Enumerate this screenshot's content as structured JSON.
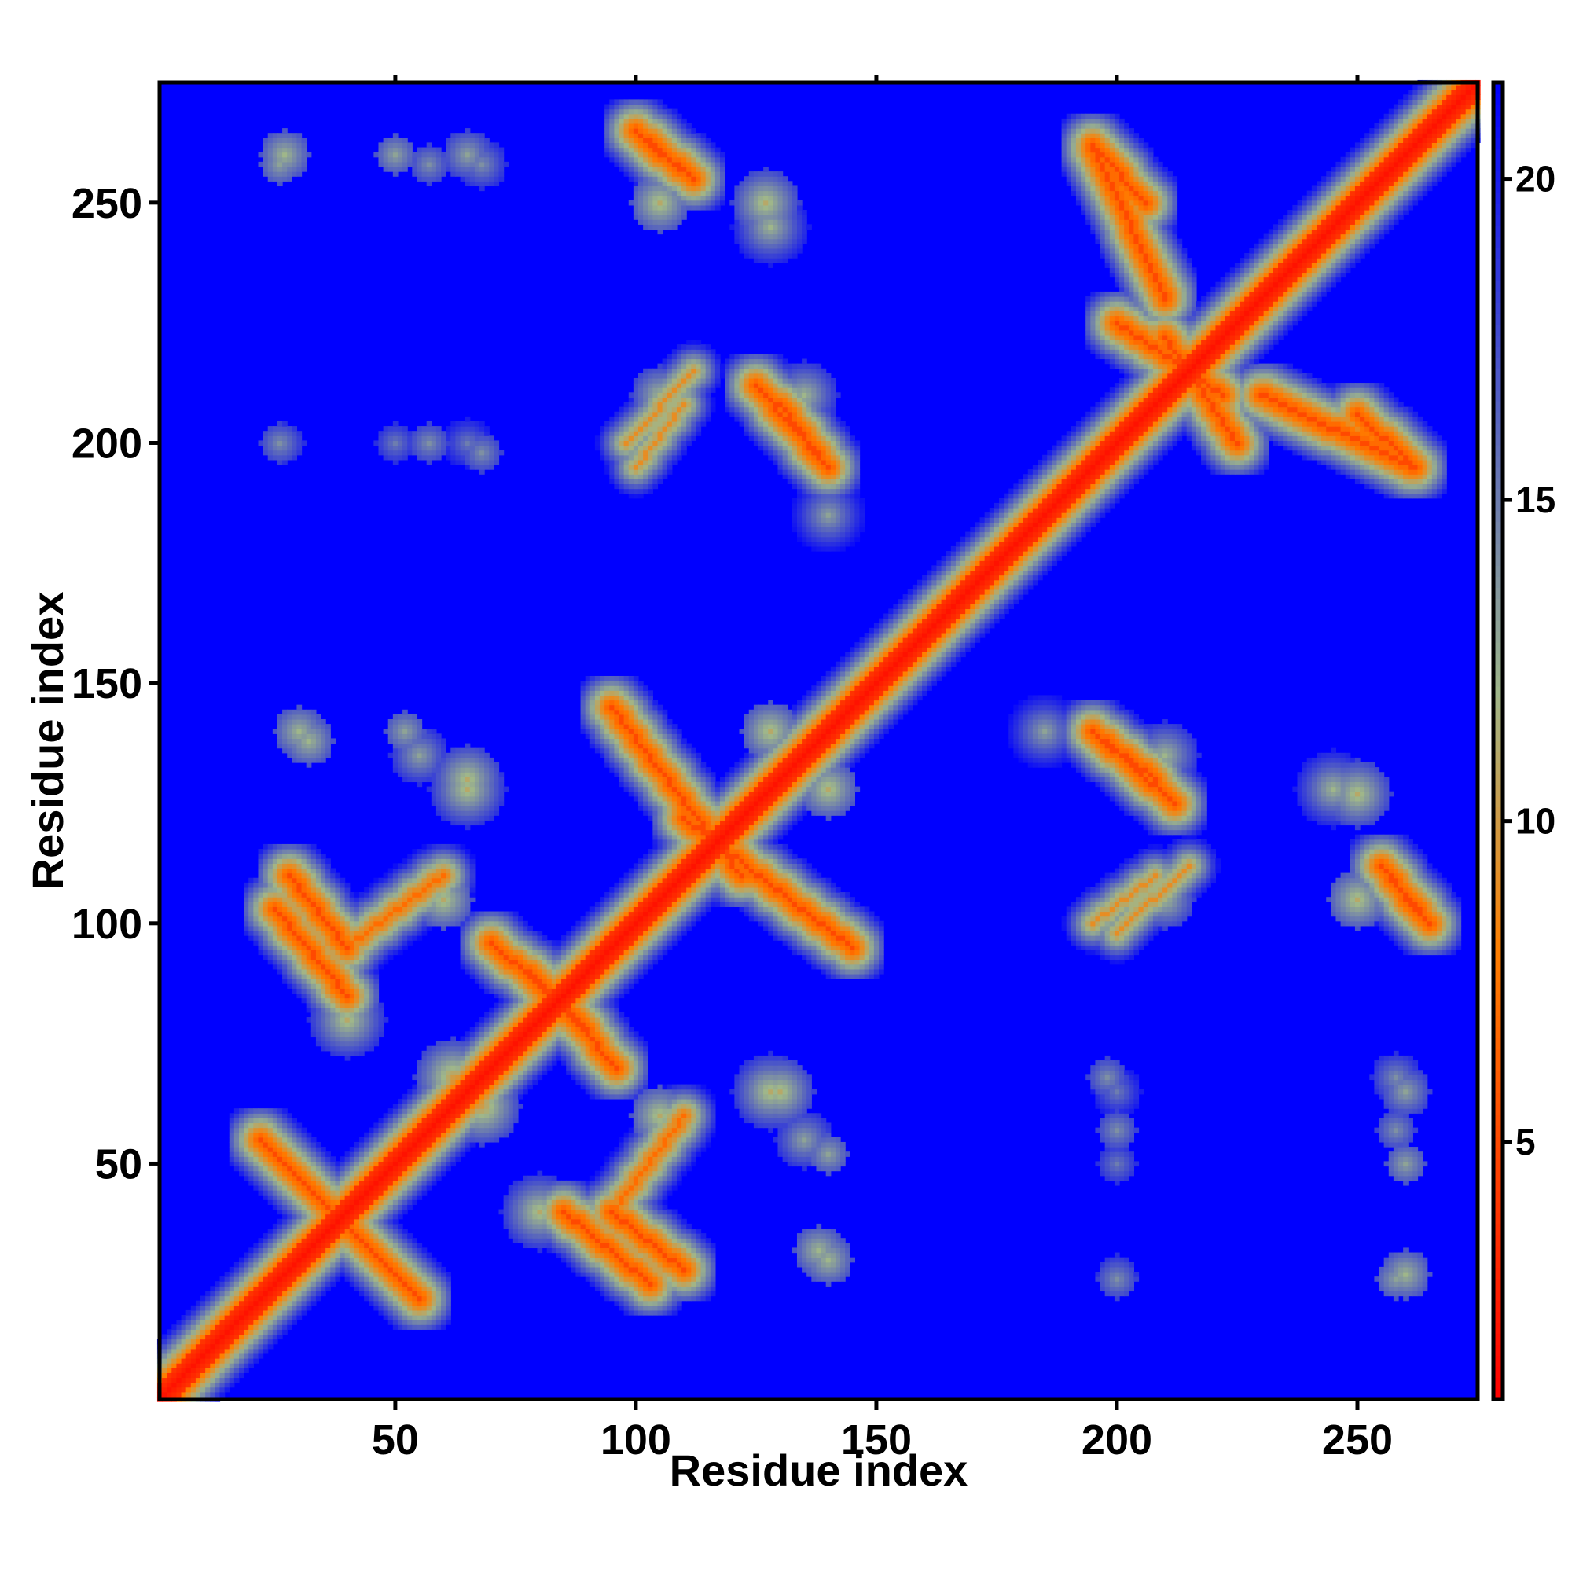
{
  "chart_data": {
    "type": "heatmap",
    "title": "",
    "xlabel": "Residue index",
    "ylabel": "Residue index",
    "xlim": [
      1,
      275
    ],
    "ylim": [
      1,
      275
    ],
    "x_ticks": [
      50,
      100,
      150,
      200,
      250
    ],
    "y_ticks": [
      50,
      100,
      150,
      200,
      250
    ],
    "x_tick_labels": [
      "50",
      "100",
      "150",
      "200",
      "250"
    ],
    "y_tick_labels": [
      "50",
      "100",
      "150",
      "200",
      "250"
    ],
    "colorbar": {
      "range": [
        1,
        21.5
      ],
      "ticks": [
        5,
        10,
        15,
        20
      ],
      "tick_labels": [
        "5",
        "10",
        "15",
        "20"
      ],
      "colors": [
        "#ff0000",
        "#ff7f00",
        "#9fb68a",
        "#0000ff"
      ],
      "stops": [
        1,
        8,
        12,
        21.5
      ]
    },
    "background_value": 21.5,
    "background_color": "#0000ff",
    "diagonal": {
      "value": 2,
      "halfwidth": 3
    },
    "contact_bands": [
      {
        "kind": "antiparallel",
        "a": [
          22,
          45
        ],
        "b": [
          32,
          55
        ],
        "value": 5
      },
      {
        "kind": "antiparallel",
        "a": [
          95,
          110
        ],
        "b": [
          28,
          40
        ],
        "value": 5
      },
      {
        "kind": "antiparallel",
        "a": [
          78,
          96
        ],
        "b": [
          70,
          90
        ],
        "value": 5
      },
      {
        "kind": "antiparallel",
        "a": [
          25,
          40
        ],
        "b": [
          85,
          103
        ],
        "value": 5
      },
      {
        "kind": "antiparallel",
        "a": [
          110,
          145
        ],
        "b": [
          95,
          122
        ],
        "value": 5
      },
      {
        "kind": "antiparallel",
        "a": [
          100,
          112
        ],
        "b": [
          255,
          265
        ],
        "value": 5
      },
      {
        "kind": "antiparallel",
        "a": [
          125,
          140
        ],
        "b": [
          195,
          212
        ],
        "value": 5
      },
      {
        "kind": "antiparallel",
        "a": [
          195,
          206
        ],
        "b": [
          250,
          262
        ],
        "value": 5
      },
      {
        "kind": "antiparallel",
        "a": [
          210,
          225
        ],
        "b": [
          200,
          222
        ],
        "value": 5
      },
      {
        "kind": "antiparallel",
        "a": [
          230,
          262
        ],
        "b": [
          195,
          210
        ],
        "value": 5
      },
      {
        "kind": "antiparallel",
        "a": [
          195,
          208
        ],
        "b": [
          130,
          140
        ],
        "value": 5
      },
      {
        "kind": "antiparallel",
        "a": [
          255,
          262
        ],
        "b": [
          103,
          112
        ],
        "value": 5
      },
      {
        "kind": "parallel",
        "a": [
          40,
          60
        ],
        "b": [
          95,
          110
        ],
        "value": 7
      },
      {
        "kind": "parallel",
        "a": [
          100,
          110
        ],
        "b": [
          195,
          208
        ],
        "value": 9
      },
      {
        "kind": "parallel",
        "a": [
          200,
          215
        ],
        "b": [
          98,
          112
        ],
        "value": 9
      }
    ],
    "contact_blobs": [
      {
        "x": 26,
        "y": 258,
        "r": 4,
        "value": 13
      },
      {
        "x": 57,
        "y": 258,
        "r": 4,
        "value": 14
      },
      {
        "x": 68,
        "y": 258,
        "r": 5,
        "value": 14
      },
      {
        "x": 26,
        "y": 200,
        "r": 4,
        "value": 14
      },
      {
        "x": 57,
        "y": 200,
        "r": 4,
        "value": 14
      },
      {
        "x": 68,
        "y": 198,
        "r": 4,
        "value": 14
      },
      {
        "x": 128,
        "y": 245,
        "r": 8,
        "value": 12
      },
      {
        "x": 140,
        "y": 185,
        "r": 10,
        "value": 13
      },
      {
        "x": 30,
        "y": 140,
        "r": 5,
        "value": 12
      },
      {
        "x": 52,
        "y": 140,
        "r": 4,
        "value": 13
      },
      {
        "x": 65,
        "y": 130,
        "r": 7,
        "value": 11
      },
      {
        "x": 100,
        "y": 140,
        "r": 6,
        "value": 11
      },
      {
        "x": 128,
        "y": 140,
        "r": 6,
        "value": 11
      },
      {
        "x": 40,
        "y": 80,
        "r": 8,
        "value": 11
      },
      {
        "x": 60,
        "y": 105,
        "r": 6,
        "value": 11
      },
      {
        "x": 62,
        "y": 68,
        "r": 8,
        "value": 10
      },
      {
        "x": 128,
        "y": 65,
        "r": 8,
        "value": 11
      },
      {
        "x": 135,
        "y": 55,
        "r": 6,
        "value": 13
      },
      {
        "x": 138,
        "y": 32,
        "r": 5,
        "value": 12
      },
      {
        "x": 260,
        "y": 65,
        "r": 5,
        "value": 13
      },
      {
        "x": 260,
        "y": 50,
        "r": 4,
        "value": 13
      },
      {
        "x": 260,
        "y": 27,
        "r": 5,
        "value": 12
      },
      {
        "x": 200,
        "y": 65,
        "r": 5,
        "value": 15
      },
      {
        "x": 200,
        "y": 50,
        "r": 4,
        "value": 15
      },
      {
        "x": 200,
        "y": 27,
        "r": 4,
        "value": 15
      },
      {
        "x": 250,
        "y": 127,
        "r": 7,
        "value": 11
      },
      {
        "x": 250,
        "y": 105,
        "r": 6,
        "value": 11
      },
      {
        "x": 165,
        "y": 165,
        "r": 6,
        "value": 10
      },
      {
        "x": 135,
        "y": 210,
        "r": 7,
        "value": 12
      },
      {
        "x": 105,
        "y": 210,
        "r": 6,
        "value": 12
      }
    ]
  }
}
